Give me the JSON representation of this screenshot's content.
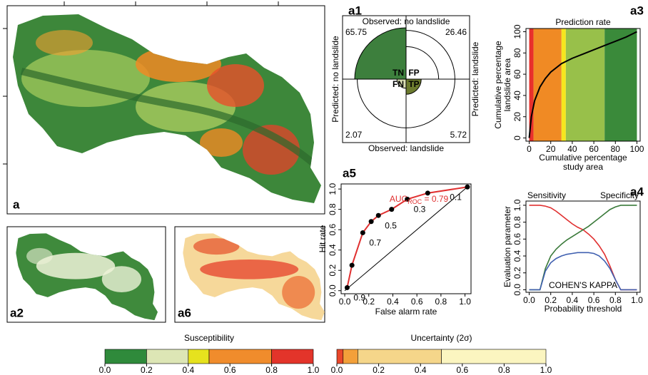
{
  "maps": [
    {
      "label": "a"
    },
    {
      "label": "a2"
    },
    {
      "label": "a6"
    }
  ],
  "chart_data": [
    {
      "type": "fourfold",
      "label": "a1",
      "top_label": "Observed: no landslide",
      "bottom_label": "Observed: landslide",
      "left_label": "Predicted: no landslide",
      "right_label": "Predicted: landslide",
      "cells": [
        {
          "name": "TN",
          "value": 65.75,
          "color": "#3d7f3d"
        },
        {
          "name": "FP",
          "value": 26.46,
          "color": "#ffffff"
        },
        {
          "name": "FN",
          "value": 2.07,
          "color": "#d9deb3"
        },
        {
          "name": "TP",
          "value": 5.72,
          "color": "#6b7a2e"
        }
      ]
    },
    {
      "type": "line",
      "label": "a3",
      "title": "Prediction rate",
      "xlabel": [
        "Cumulative percentage",
        "study area"
      ],
      "ylabel": [
        "Cumulative percentage",
        "landslide area"
      ],
      "x": [
        0,
        2,
        5,
        10,
        15,
        20,
        30,
        40,
        50,
        60,
        70,
        80,
        90,
        100
      ],
      "values": [
        0,
        20,
        35,
        48,
        56,
        62,
        70,
        75,
        79,
        83,
        87,
        91,
        95,
        100
      ],
      "color": "#000000",
      "xlim": [
        -3,
        103
      ],
      "ylim": [
        -3,
        103
      ],
      "xticks": [
        0,
        20,
        40,
        60,
        80,
        100
      ],
      "yticks": [
        0,
        20,
        40,
        60,
        80,
        100
      ],
      "bands": [
        {
          "from": 0,
          "to": 4,
          "color": "#e8302c"
        },
        {
          "from": 4,
          "to": 30,
          "color": "#f08a24"
        },
        {
          "from": 30,
          "to": 34,
          "color": "#f5e61e"
        },
        {
          "from": 34,
          "to": 70,
          "color": "#98c04a"
        },
        {
          "from": 70,
          "to": 100,
          "color": "#3a8a3a"
        }
      ]
    },
    {
      "type": "roc",
      "label": "a5",
      "title": "AUC",
      "title_sub": "ROC",
      "title_rest": " = 0.79",
      "xlabel": "False alarm rate",
      "ylabel": "Hit rate",
      "color": "#e03030",
      "x": [
        0.02,
        0.06,
        0.15,
        0.22,
        0.28,
        0.39,
        0.52,
        0.69,
        1.02
      ],
      "values": [
        0.03,
        0.25,
        0.57,
        0.68,
        0.74,
        0.8,
        0.9,
        0.96,
        1.02
      ],
      "point_labels": [
        "0.9",
        null,
        "0.7",
        null,
        "0.5",
        null,
        "0.3",
        null,
        "0.1"
      ],
      "xlim": [
        -0.03,
        1.05
      ],
      "ylim": [
        -0.03,
        1.05
      ],
      "xticks": [
        {
          "value": 0,
          "label": "0.0"
        },
        {
          "value": 0.2,
          "label": "0.2"
        },
        {
          "value": 0.4,
          "label": "0.4"
        },
        {
          "value": 0.6,
          "label": "0.6"
        },
        {
          "value": 0.8,
          "label": "0.8"
        },
        {
          "value": 1,
          "label": "1.0"
        }
      ],
      "yticks": [
        {
          "value": 0,
          "label": "0.0"
        },
        {
          "value": 0.2,
          "label": "0.2"
        },
        {
          "value": 0.4,
          "label": "0.4"
        },
        {
          "value": 0.6,
          "label": "0.6"
        },
        {
          "value": 0.8,
          "label": "0.8"
        },
        {
          "value": 1,
          "label": "1.0"
        }
      ]
    },
    {
      "type": "line",
      "label": "a4",
      "xlabel": "Probability threshold",
      "ylabel": "Evaluation parameter",
      "x": [
        0,
        0.05,
        0.1,
        0.15,
        0.2,
        0.25,
        0.3,
        0.35,
        0.4,
        0.45,
        0.5,
        0.55,
        0.6,
        0.65,
        0.7,
        0.75,
        0.8,
        0.85,
        0.9,
        0.95,
        1.0
      ],
      "series": [
        {
          "name": "Sensitivity",
          "color": "#e03030",
          "values": [
            1,
            1,
            1,
            0.99,
            0.97,
            0.93,
            0.88,
            0.83,
            0.78,
            0.74,
            0.71,
            0.66,
            0.6,
            0.52,
            0.42,
            0.28,
            0.12,
            0,
            0,
            0,
            0
          ]
        },
        {
          "name": "Specificity",
          "color": "#3a7a3a",
          "values": [
            0,
            0,
            0,
            0.25,
            0.4,
            0.48,
            0.54,
            0.59,
            0.63,
            0.67,
            0.71,
            0.75,
            0.8,
            0.85,
            0.9,
            0.95,
            0.98,
            1,
            1,
            1,
            1
          ]
        },
        {
          "name": "COHEN'S KAPPA",
          "color": "#4060b0",
          "values": [
            0,
            0,
            0,
            0.22,
            0.32,
            0.37,
            0.4,
            0.42,
            0.43,
            0.44,
            0.44,
            0.44,
            0.43,
            0.4,
            0.34,
            0.25,
            0.12,
            0,
            0,
            0,
            0
          ]
        }
      ],
      "xlim": [
        -0.03,
        1.03
      ],
      "ylim": [
        -0.03,
        1.05
      ],
      "xticks": [
        {
          "value": 0,
          "label": "0.0"
        },
        {
          "value": 0.2,
          "label": "0.2"
        },
        {
          "value": 0.4,
          "label": "0.4"
        },
        {
          "value": 0.6,
          "label": "0.6"
        },
        {
          "value": 0.8,
          "label": "0.8"
        },
        {
          "value": 1,
          "label": "1.0"
        }
      ],
      "yticks": [
        {
          "value": 0,
          "label": "0.0"
        },
        {
          "value": 0.2,
          "label": "0.2"
        },
        {
          "value": 0.4,
          "label": "0.4"
        },
        {
          "value": 0.6,
          "label": "0.6"
        },
        {
          "value": 0.8,
          "label": "0.8"
        },
        {
          "value": 1,
          "label": "1.0"
        }
      ]
    },
    {
      "type": "colorbar",
      "title": "Susceptibility",
      "bins": [
        0,
        0.2,
        0.4,
        0.5,
        0.8,
        1.0
      ],
      "colors": [
        "#2f8a3b",
        "#dde6b5",
        "#e6e21e",
        "#f08c2c",
        "#e3342a"
      ],
      "xlim": [
        0,
        1
      ],
      "xticks": [
        {
          "value": 0,
          "label": "0.0"
        },
        {
          "value": 0.2,
          "label": "0.2"
        },
        {
          "value": 0.4,
          "label": "0.4"
        },
        {
          "value": 0.6,
          "label": "0.6"
        },
        {
          "value": 0.8,
          "label": "0.8"
        },
        {
          "value": 1,
          "label": "1.0"
        }
      ]
    },
    {
      "type": "colorbar",
      "title": "Uncertainty (2σ)",
      "bins": [
        0,
        0.03,
        0.1,
        0.5,
        1.0
      ],
      "colors": [
        "#e9472a",
        "#f3a03a",
        "#f5d68a",
        "#fbf5c0"
      ],
      "xlim": [
        0,
        1
      ],
      "xticks": [
        {
          "value": 0,
          "label": "0.0"
        },
        {
          "value": 0.2,
          "label": "0.2"
        },
        {
          "value": 0.4,
          "label": "0.4"
        },
        {
          "value": 0.6,
          "label": "0.6"
        },
        {
          "value": 0.8,
          "label": "0.8"
        },
        {
          "value": 1,
          "label": "1.0"
        }
      ]
    }
  ]
}
